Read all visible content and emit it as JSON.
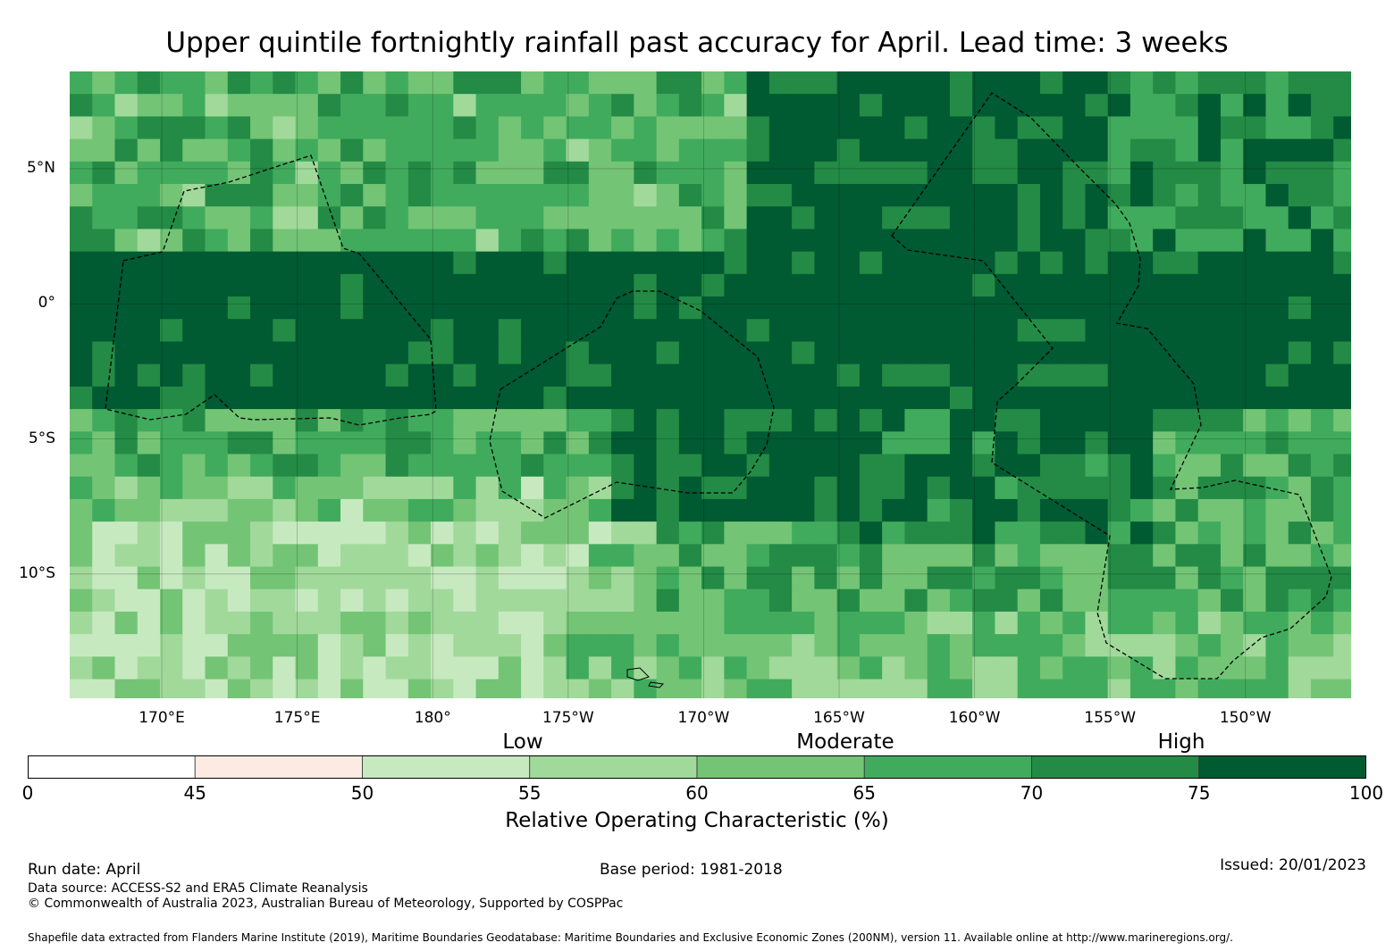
{
  "title": "Upper quintile fortnightly rainfall past accuracy for April. Lead time: 3 weeks",
  "map": {
    "lat_labels": [
      {
        "text": "5°N",
        "lat": 5
      },
      {
        "text": "0°",
        "lat": 0
      },
      {
        "text": "5°S",
        "lat": -5
      },
      {
        "text": "10°S",
        "lat": -10
      }
    ],
    "lon_labels": [
      {
        "text": "170°E",
        "lon": 170
      },
      {
        "text": "175°E",
        "lon": 175
      },
      {
        "text": "180°",
        "lon": 180
      },
      {
        "text": "175°W",
        "lon": 185
      },
      {
        "text": "170°W",
        "lon": 190
      },
      {
        "text": "165°W",
        "lon": 195
      },
      {
        "text": "160°W",
        "lon": 200
      },
      {
        "text": "155°W",
        "lon": 205
      },
      {
        "text": "150°W",
        "lon": 210
      }
    ],
    "extent": {
      "lon_min": 166.6,
      "lon_max": 213.9,
      "lat_min": -14.6,
      "lat_max": 8.6
    },
    "grid_cell_deg": 0.833
  },
  "legend": {
    "categories": [
      "Low",
      "Moderate",
      "High"
    ],
    "ticks": [
      "0",
      "45",
      "50",
      "55",
      "60",
      "65",
      "70",
      "75",
      "100"
    ],
    "bins": [
      {
        "from": 0,
        "to": 45,
        "color": "#ffffff"
      },
      {
        "from": 45,
        "to": 50,
        "color": "#fdeae3"
      },
      {
        "from": 50,
        "to": 55,
        "color": "#c7e9c0"
      },
      {
        "from": 55,
        "to": 60,
        "color": "#a1d99b"
      },
      {
        "from": 60,
        "to": 65,
        "color": "#74c476"
      },
      {
        "from": 65,
        "to": 70,
        "color": "#41ab5d"
      },
      {
        "from": 70,
        "to": 75,
        "color": "#238b45"
      },
      {
        "from": 75,
        "to": 100,
        "color": "#005a32"
      }
    ],
    "title": "Relative Operating Characteristic (%)"
  },
  "footer": {
    "run_date": "Run date: April",
    "base_period": "Base period: 1981-2018",
    "issued": "Issued: 20/01/2023",
    "data_source": "Data source: ACCESS-S2 and ERA5 Climate Reanalysis",
    "copyright": "© Commonwealth of Australia 2023, Australian Bureau of Meteorology, Supported by COSPPac",
    "shapefile": "Shapefile data extracted from Flanders Marine Institute (2019), Maritime Boundaries Geodatabase: Maritime Boundaries and Exclusive Economic Zones (200NM), version 11. Available online at http://www.marineregions.org/."
  }
}
